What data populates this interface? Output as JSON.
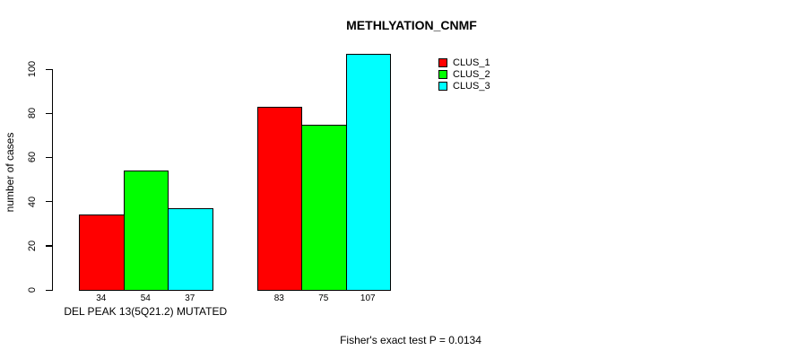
{
  "chart_data": {
    "type": "bar",
    "title": "METHLYATION_CNMF",
    "ylabel": "number of cases",
    "xlabel": "",
    "groups": [
      "DEL PEAK 13(5Q21.2) MUTATED",
      ""
    ],
    "annotation": "Fisher's exact test P = 0.0134",
    "yticks": [
      0,
      20,
      40,
      60,
      80,
      100
    ],
    "ylim": [
      0,
      100
    ],
    "grid": false,
    "legend_position": "top-right",
    "background_color": "#ffffff",
    "axis_color": "#000000",
    "bar_border_color": "#000000",
    "series": [
      {
        "name": "CLUS_1",
        "color": "#ff0000",
        "values": [
          34,
          83
        ]
      },
      {
        "name": "CLUS_2",
        "color": "#00ff00",
        "values": [
          54,
          75
        ]
      },
      {
        "name": "CLUS_3",
        "color": "#00ffff",
        "values": [
          37,
          107
        ]
      }
    ]
  }
}
